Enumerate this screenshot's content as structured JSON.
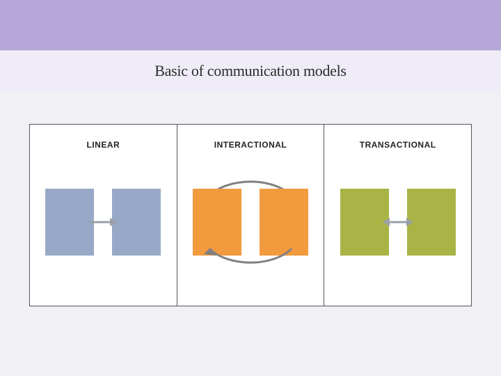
{
  "title": "Basic of communication models",
  "title_fontsize": 22,
  "title_color": "#2b2b2b",
  "colors": {
    "top_stripe": "#b7a7d8",
    "title_bar_bg": "#efecf7",
    "main_bg": "#f1f0f4",
    "panel_bg": "#ffffff",
    "panel_border": "#555555",
    "label_color": "#222222",
    "linear_block": "#97a9c7",
    "interactional_block": "#f29a3e",
    "transactional_block": "#a8b445",
    "arrow_light": "#9aa0a6",
    "arrow_interactional": "#808080"
  },
  "panels": [
    {
      "key": "linear",
      "label": "LINEAR",
      "type": "one-way",
      "block_color": "#97a9c7"
    },
    {
      "key": "interactional",
      "label": "INTERACTIONAL",
      "type": "cyclical",
      "block_color": "#f29a3e"
    },
    {
      "key": "transactional",
      "label": "TRANSACTIONAL",
      "type": "two-way",
      "block_color": "#a8b445"
    }
  ],
  "label_fontsize": 12,
  "block_size": {
    "w": 70,
    "h": 96
  }
}
